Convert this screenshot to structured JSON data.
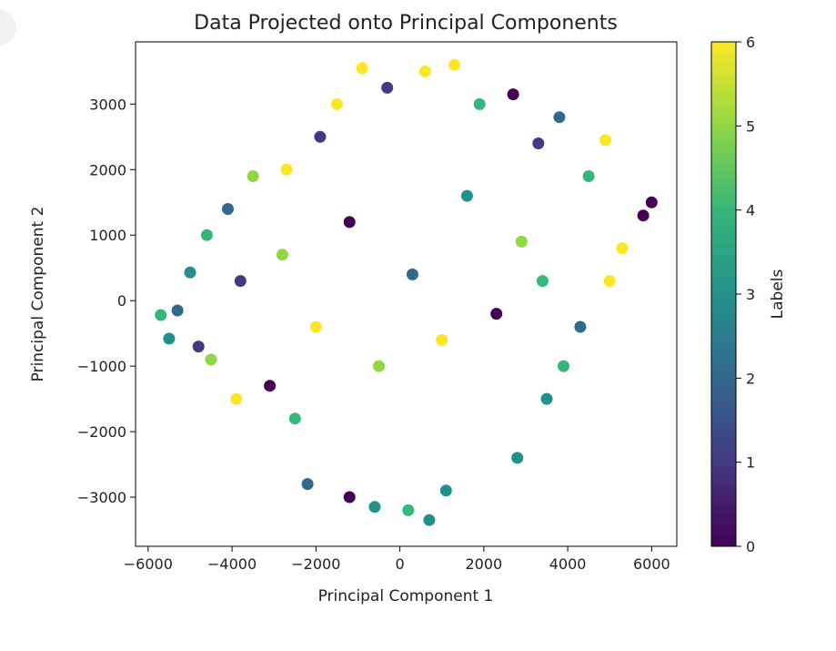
{
  "chart_data": {
    "type": "scatter",
    "title": "Data Projected onto Principal Components",
    "xlabel": "Principal Component 1",
    "ylabel": "Principal Component 2",
    "xlim": [
      -6300,
      6600
    ],
    "ylim": [
      -3750,
      3950
    ],
    "xticks": [
      -6000,
      -4000,
      -2000,
      0,
      2000,
      4000,
      6000
    ],
    "xtick_labels": [
      "−6000",
      "−4000",
      "−2000",
      "0",
      "2000",
      "4000",
      "6000"
    ],
    "yticks": [
      -3000,
      -2000,
      -1000,
      0,
      1000,
      2000,
      3000
    ],
    "ytick_labels": [
      "−3000",
      "−2000",
      "−1000",
      "0",
      "1000",
      "2000",
      "3000"
    ],
    "colorbar": {
      "label": "Labels",
      "min": 0,
      "max": 6,
      "ticks": [
        0,
        1,
        2,
        3,
        4,
        5,
        6
      ],
      "tick_labels": [
        "0",
        "1",
        "2",
        "3",
        "4",
        "5",
        "6"
      ],
      "colormap": "viridis"
    },
    "grid": false,
    "points": [
      {
        "x": -5700,
        "y": -220,
        "label": 4
      },
      {
        "x": -5500,
        "y": -580,
        "label": 3
      },
      {
        "x": -5300,
        "y": -150,
        "label": 2
      },
      {
        "x": -5000,
        "y": 430,
        "label": 3
      },
      {
        "x": -4800,
        "y": -700,
        "label": 1
      },
      {
        "x": -4600,
        "y": 1000,
        "label": 4
      },
      {
        "x": -4500,
        "y": -900,
        "label": 5
      },
      {
        "x": -4100,
        "y": 1400,
        "label": 2
      },
      {
        "x": -3900,
        "y": -1500,
        "label": 6
      },
      {
        "x": -3500,
        "y": 1900,
        "label": 5
      },
      {
        "x": -3100,
        "y": -1300,
        "label": 0
      },
      {
        "x": -2700,
        "y": 2000,
        "label": 6
      },
      {
        "x": -2500,
        "y": -1800,
        "label": 4
      },
      {
        "x": -2200,
        "y": -2800,
        "label": 2
      },
      {
        "x": -1900,
        "y": 2500,
        "label": 1
      },
      {
        "x": -1500,
        "y": 3000,
        "label": 6
      },
      {
        "x": -1200,
        "y": -3000,
        "label": 0
      },
      {
        "x": -900,
        "y": 3550,
        "label": 6
      },
      {
        "x": -600,
        "y": -3150,
        "label": 3
      },
      {
        "x": -300,
        "y": 3250,
        "label": 1
      },
      {
        "x": 200,
        "y": -3200,
        "label": 4
      },
      {
        "x": 600,
        "y": 3500,
        "label": 6
      },
      {
        "x": 700,
        "y": -3350,
        "label": 3
      },
      {
        "x": 1300,
        "y": 3600,
        "label": 6
      },
      {
        "x": 1100,
        "y": -2900,
        "label": 3
      },
      {
        "x": 1900,
        "y": 3000,
        "label": 4
      },
      {
        "x": 2700,
        "y": 3150,
        "label": 0
      },
      {
        "x": 2800,
        "y": -2400,
        "label": 3
      },
      {
        "x": 3300,
        "y": 2400,
        "label": 1
      },
      {
        "x": 3800,
        "y": 2800,
        "label": 2
      },
      {
        "x": 4300,
        "y": -400,
        "label": 2
      },
      {
        "x": 4500,
        "y": 1900,
        "label": 4
      },
      {
        "x": 4900,
        "y": 2450,
        "label": 6
      },
      {
        "x": 5000,
        "y": 300,
        "label": 6
      },
      {
        "x": 5300,
        "y": 800,
        "label": 6
      },
      {
        "x": 5800,
        "y": 1300,
        "label": 0
      },
      {
        "x": 6000,
        "y": 1500,
        "label": 0
      },
      {
        "x": 3900,
        "y": -1000,
        "label": 4
      },
      {
        "x": 3500,
        "y": -1500,
        "label": 3
      },
      {
        "x": -3800,
        "y": 300,
        "label": 1
      },
      {
        "x": -2800,
        "y": 700,
        "label": 5
      },
      {
        "x": -2000,
        "y": -400,
        "label": 6
      },
      {
        "x": -1200,
        "y": 1200,
        "label": 0
      },
      {
        "x": -500,
        "y": -1000,
        "label": 5
      },
      {
        "x": 300,
        "y": 400,
        "label": 2
      },
      {
        "x": 1000,
        "y": -600,
        "label": 6
      },
      {
        "x": 1600,
        "y": 1600,
        "label": 3
      },
      {
        "x": 2300,
        "y": -200,
        "label": 0
      },
      {
        "x": 2900,
        "y": 900,
        "label": 5
      },
      {
        "x": 3400,
        "y": 300,
        "label": 4
      }
    ]
  }
}
